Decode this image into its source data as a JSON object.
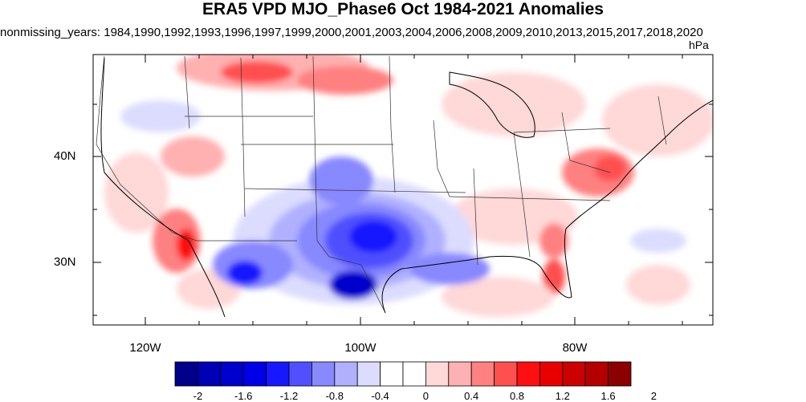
{
  "figure": {
    "title": "ERA5 VPD MJO_Phase6 Oct 1984-2021 Anomalies",
    "subtitle": "nonmissing_years: 1984,1990,1992,1993,1996,1997,1999,2000,2001,2003,2004,2006,2008,2009,2010,2013,2015,2017,2018,2020",
    "units": "hPa"
  },
  "axes": {
    "y_labels": [
      "40N",
      "30N"
    ],
    "x_labels": [
      "120W",
      "100W",
      "80W"
    ]
  },
  "colorbar": {
    "tick_labels": [
      "-2",
      "-1.6",
      "-1.2",
      "-0.8",
      "-0.4",
      "0",
      "0.4",
      "0.8",
      "1.2",
      "1.6",
      "2"
    ],
    "colors": [
      "#00008b",
      "#0000b4",
      "#0000cd",
      "#0000e8",
      "#1818ff",
      "#5050ff",
      "#8888ff",
      "#b0b0ff",
      "#dcdcff",
      "#ffffff",
      "#ffffff",
      "#ffd8d8",
      "#ffb0b0",
      "#ff8080",
      "#ff5050",
      "#ff1010",
      "#e80000",
      "#cc0000",
      "#b40000",
      "#8b0000"
    ]
  },
  "map_data": {
    "variable": "VPD anomaly",
    "region": "CONUS",
    "lon_range": [
      -125,
      -65
    ],
    "lat_range": [
      24,
      50
    ],
    "features": [
      {
        "name": "Texas / southern plains dry-air deficit",
        "value": -1.8,
        "center": [
          -100,
          31
        ]
      },
      {
        "name": "Northwest Mexico deficit",
        "value": -1.4,
        "center": [
          -110,
          30
        ]
      },
      {
        "name": "Southern California / Baja positive",
        "value": 1.4,
        "center": [
          -116,
          32
        ]
      },
      {
        "name": "Northern plains positive",
        "value": 0.9,
        "center": [
          -108,
          48
        ]
      },
      {
        "name": "Florida positive",
        "value": 1.0,
        "center": [
          -82,
          29
        ]
      },
      {
        "name": "Mid-Atlantic positive",
        "value": 0.9,
        "center": [
          -78,
          38
        ]
      }
    ]
  }
}
